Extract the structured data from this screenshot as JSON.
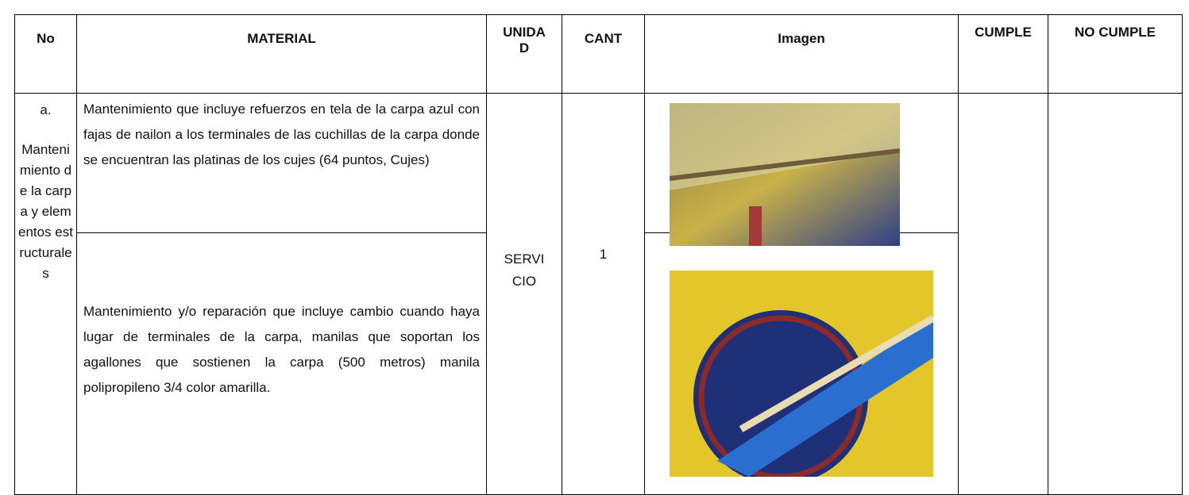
{
  "table": {
    "headers": [
      "No",
      "MATERIAL",
      "UNIDAD",
      "CANT",
      "Imagen",
      "CUMPLE",
      "NO CUMPLE"
    ],
    "rows": [
      {
        "no": "a.",
        "group": "Mantenimiento de la carpa y elementos estructurales",
        "material": "Mantenimiento que incluye refuerzos en tela de la carpa azul con fajas de nailon  a los terminales de las cuchillas de la carpa  donde se encuentran  las platinas de los cujes (64 puntos, Cujes)",
        "unidad": "SERVICIO",
        "cant": "1"
      },
      {
        "material": "Mantenimiento y/o reparación que incluye cambio cuando haya lugar de terminales de la carpa, manilas que soportan los agallones que sostienen la carpa (500 metros) manila polipropileno 3/4 color amarilla."
      }
    ]
  }
}
